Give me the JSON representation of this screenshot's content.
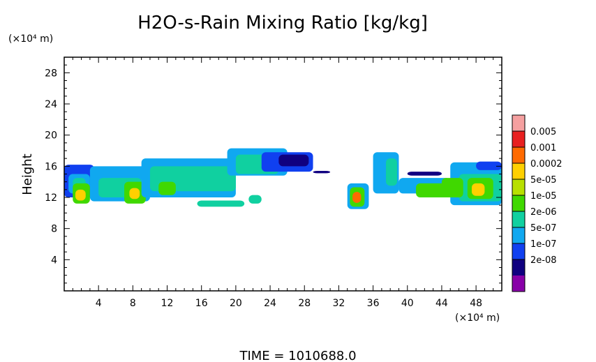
{
  "chart_data": {
    "type": "heatmap",
    "title": "H2O-s-Rain Mixing Ratio [kg/kg]",
    "ylabel": "Height",
    "y_unit": "(×10⁴ m)",
    "x_unit": "(×10⁴ m)",
    "xlim": [
      0,
      51
    ],
    "ylim": [
      0,
      30
    ],
    "x_ticks": [
      4,
      8,
      12,
      16,
      20,
      24,
      28,
      32,
      36,
      40,
      44,
      48
    ],
    "y_ticks": [
      4,
      8,
      12,
      16,
      20,
      24,
      28
    ],
    "time_label": "TIME  =  1010688.0",
    "colorbar": {
      "labels": [
        "0.005",
        "0.001",
        "0.0002",
        "5e-05",
        "1e-05",
        "2e-06",
        "5e-07",
        "1e-07",
        "2e-08"
      ],
      "colors_top_to_bottom": [
        "#f5a0a0",
        "#e82020",
        "#ff6a00",
        "#ffd000",
        "#b8e000",
        "#40d800",
        "#10d0a0",
        "#10a8f0",
        "#1040f0",
        "#100080",
        "#8800a8"
      ]
    },
    "regions": [
      {
        "x": [
          0,
          3.5
        ],
        "y": [
          12,
          16.2
        ],
        "level": "1e-07"
      },
      {
        "x": [
          0.5,
          3
        ],
        "y": [
          12.5,
          15
        ],
        "level": "5e-07"
      },
      {
        "x": [
          1,
          2.5
        ],
        "y": [
          13,
          14.5
        ],
        "level": "2e-06"
      },
      {
        "x": [
          1,
          3
        ],
        "y": [
          11.2,
          13.8
        ],
        "level": "1e-05"
      },
      {
        "x": [
          1.3,
          2.5
        ],
        "y": [
          11.6,
          13
        ],
        "level": "0.0002"
      },
      {
        "x": [
          3,
          10
        ],
        "y": [
          11.5,
          16
        ],
        "level": "5e-07"
      },
      {
        "x": [
          4,
          9
        ],
        "y": [
          12,
          14.5
        ],
        "level": "2e-06"
      },
      {
        "x": [
          7,
          9.5
        ],
        "y": [
          11.2,
          14
        ],
        "level": "1e-05"
      },
      {
        "x": [
          7.6,
          8.8
        ],
        "y": [
          11.8,
          13.2
        ],
        "level": "0.0002"
      },
      {
        "x": [
          9,
          20
        ],
        "y": [
          12,
          17
        ],
        "level": "5e-07"
      },
      {
        "x": [
          10,
          20
        ],
        "y": [
          12.8,
          16
        ],
        "level": "2e-06"
      },
      {
        "x": [
          11,
          13
        ],
        "y": [
          12.3,
          14
        ],
        "level": "1e-05"
      },
      {
        "x": [
          19,
          26
        ],
        "y": [
          14.8,
          18.3
        ],
        "level": "5e-07"
      },
      {
        "x": [
          20,
          25
        ],
        "y": [
          15,
          17.5
        ],
        "level": "2e-06"
      },
      {
        "x": [
          23,
          29
        ],
        "y": [
          15.3,
          17.8
        ],
        "level": "1e-07"
      },
      {
        "x": [
          25,
          28.5
        ],
        "y": [
          16,
          17.5
        ],
        "level": "2e-08"
      },
      {
        "x": [
          29,
          31
        ],
        "y": [
          15.1,
          15.4
        ],
        "level": "2e-08"
      },
      {
        "x": [
          15.5,
          21
        ],
        "y": [
          10.8,
          11.6
        ],
        "level": "2e-06"
      },
      {
        "x": [
          21.5,
          23
        ],
        "y": [
          11.2,
          12.3
        ],
        "level": "2e-06"
      },
      {
        "x": [
          33,
          35.5
        ],
        "y": [
          10.5,
          13.8
        ],
        "level": "5e-07"
      },
      {
        "x": [
          33.3,
          35
        ],
        "y": [
          10.8,
          13.3
        ],
        "level": "1e-05"
      },
      {
        "x": [
          33.6,
          34.6
        ],
        "y": [
          11.3,
          12.7
        ],
        "level": "0.001"
      },
      {
        "x": [
          36,
          39
        ],
        "y": [
          12.5,
          17.8
        ],
        "level": "5e-07"
      },
      {
        "x": [
          37.5,
          38.8
        ],
        "y": [
          13.5,
          17
        ],
        "level": "2e-06"
      },
      {
        "x": [
          39,
          45
        ],
        "y": [
          12.5,
          14.5
        ],
        "level": "5e-07"
      },
      {
        "x": [
          41,
          45
        ],
        "y": [
          12,
          13.8
        ],
        "level": "1e-05"
      },
      {
        "x": [
          45,
          51
        ],
        "y": [
          11,
          16.5
        ],
        "level": "5e-07"
      },
      {
        "x": [
          46,
          51
        ],
        "y": [
          11.5,
          15
        ],
        "level": "2e-06"
      },
      {
        "x": [
          47,
          50
        ],
        "y": [
          11.8,
          14.5
        ],
        "level": "1e-05"
      },
      {
        "x": [
          47.5,
          49
        ],
        "y": [
          12.2,
          13.8
        ],
        "level": "0.0002"
      },
      {
        "x": [
          44,
          46.5
        ],
        "y": [
          12,
          14.5
        ],
        "level": "1e-05"
      },
      {
        "x": [
          48,
          51
        ],
        "y": [
          15.5,
          16.6
        ],
        "level": "1e-07"
      },
      {
        "x": [
          40,
          44
        ],
        "y": [
          14.8,
          15.3
        ],
        "level": "2e-08"
      }
    ]
  }
}
